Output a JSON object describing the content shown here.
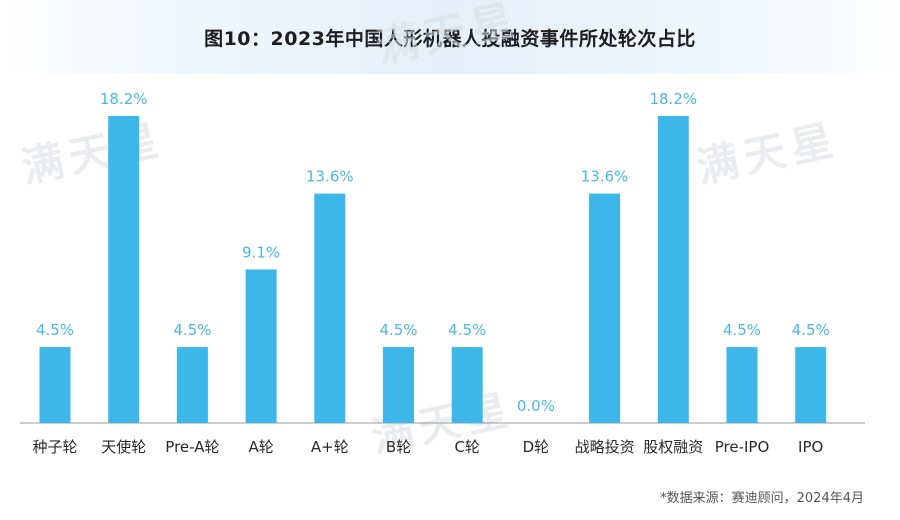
{
  "title": "图10：2023年中国人形机器人投融资事件所处轮次占比",
  "watermark": "满天星",
  "source": "*数据来源：赛迪顾问，2024年4月",
  "colors": {
    "bar": "#3db7e9",
    "value_label": "#4bb8e6"
  },
  "chart_data": {
    "type": "bar",
    "title": "图10：2023年中国人形机器人投融资事件所处轮次占比",
    "categories": [
      "种子轮",
      "天使轮",
      "Pre-A轮",
      "A轮",
      "A+轮",
      "B轮",
      "C轮",
      "D轮",
      "战略投资",
      "股权融资",
      "Pre-IPO",
      "IPO"
    ],
    "values": [
      4.5,
      18.2,
      4.5,
      9.1,
      13.6,
      4.5,
      4.5,
      0.0,
      13.6,
      18.2,
      4.5,
      4.5
    ],
    "value_labels": [
      "4.5%",
      "18.2%",
      "4.5%",
      "9.1%",
      "13.6%",
      "4.5%",
      "4.5%",
      "0.0%",
      "13.6%",
      "18.2%",
      "4.5%",
      "4.5%"
    ],
    "xlabel": "",
    "ylabel": "",
    "ylim": [
      0,
      18.2
    ],
    "grid": false,
    "legend": "none"
  }
}
